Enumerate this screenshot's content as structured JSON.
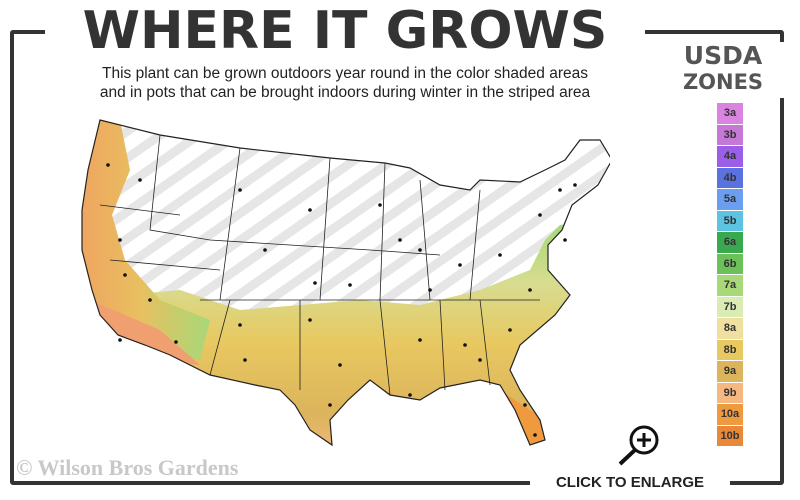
{
  "title": "WHERE IT GROWS",
  "subtitle_line1": "This plant can be grown outdoors year round in the color shaded areas",
  "subtitle_line2": "and in pots that can be brought indoors during winter in the striped area",
  "legend": {
    "title_line1": "USDA",
    "title_line2": "ZONES",
    "zones": [
      {
        "label": "3a",
        "color": "#d884e0"
      },
      {
        "label": "3b",
        "color": "#c678d6"
      },
      {
        "label": "4a",
        "color": "#9a5ee8"
      },
      {
        "label": "4b",
        "color": "#5a72e0"
      },
      {
        "label": "5a",
        "color": "#6c9ef0"
      },
      {
        "label": "5b",
        "color": "#5cc4e0"
      },
      {
        "label": "6a",
        "color": "#3aa84e"
      },
      {
        "label": "6b",
        "color": "#6cc058"
      },
      {
        "label": "7a",
        "color": "#a8d878"
      },
      {
        "label": "7b",
        "color": "#d8ecb4"
      },
      {
        "label": "8a",
        "color": "#f0e0a0"
      },
      {
        "label": "8b",
        "color": "#e8c860"
      },
      {
        "label": "9a",
        "color": "#dcb45c"
      },
      {
        "label": "9b",
        "color": "#f4b880"
      },
      {
        "label": "10a",
        "color": "#f09a40"
      },
      {
        "label": "10b",
        "color": "#e88838"
      }
    ]
  },
  "watermark": "© Wilson Bros Gardens",
  "enlarge_label": "CLICK TO ENLARGE",
  "icons": {
    "enlarge": "magnifier-plus-icon"
  }
}
